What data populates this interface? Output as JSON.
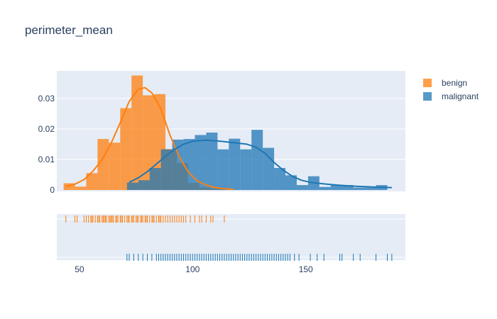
{
  "chart_data": {
    "type": "histogram",
    "title": "perimeter_mean",
    "colors": {
      "benign": "#ff7f0e",
      "malignant": "#1f77b4",
      "plot_bg": "#e5ecf6",
      "text": "#2a3f5f"
    },
    "x_range": [
      40,
      194
    ],
    "y_range": [
      0,
      0.039
    ],
    "x_ticks": [
      50,
      100,
      150
    ],
    "y_ticks": [
      0,
      0.01,
      0.02,
      0.03
    ],
    "y_tick_labels": [
      "0",
      "0.01",
      "0.02",
      "0.03"
    ],
    "legend": {
      "position": "top-right",
      "items": [
        "benign",
        "malignant"
      ]
    },
    "series": [
      {
        "name": "benign",
        "bins": {
          "start": 43,
          "width": 5
        },
        "density": [
          0.0022,
          0.0011,
          0.0055,
          0.0167,
          0.0155,
          0.0268,
          0.0375,
          0.031,
          0.0314,
          0.0134,
          0.0088,
          0.0023,
          0.0008,
          0.0004,
          0.0004
        ],
        "kde": [
          [
            44,
            0.0011
          ],
          [
            48,
            0.0019
          ],
          [
            52,
            0.0034
          ],
          [
            56,
            0.0062
          ],
          [
            60,
            0.0099
          ],
          [
            64,
            0.0153
          ],
          [
            68,
            0.022
          ],
          [
            72,
            0.029
          ],
          [
            76,
            0.033
          ],
          [
            79,
            0.0335
          ],
          [
            82,
            0.0318
          ],
          [
            86,
            0.0265
          ],
          [
            90,
            0.018
          ],
          [
            94,
            0.011
          ],
          [
            98,
            0.006
          ],
          [
            102,
            0.003
          ],
          [
            106,
            0.0016
          ],
          [
            110,
            0.0008
          ],
          [
            114,
            0.0004
          ],
          [
            118,
            0.0002
          ]
        ],
        "rug": [
          44,
          48,
          49,
          52,
          53,
          54,
          55,
          55.5,
          56,
          57,
          58,
          58.5,
          59,
          60,
          60.5,
          61,
          61.5,
          62,
          63,
          63.5,
          64,
          64.5,
          65,
          66,
          66.5,
          67,
          68,
          68.5,
          69,
          70,
          71,
          71.5,
          72,
          73,
          73.5,
          74,
          75,
          75.5,
          76,
          77,
          77.5,
          78,
          79,
          79.5,
          80,
          81,
          82,
          82.5,
          83,
          84,
          85,
          85.5,
          86,
          87,
          88,
          89,
          90,
          91,
          92,
          93,
          94,
          95,
          96,
          97,
          99,
          101,
          103,
          104,
          106,
          108,
          109,
          114
        ]
      },
      {
        "name": "malignant",
        "bins": {
          "start": 71,
          "width": 5
        },
        "density": [
          0.0024,
          0.0032,
          0.0072,
          0.0133,
          0.0165,
          0.0167,
          0.018,
          0.0188,
          0.0133,
          0.0168,
          0.0133,
          0.0197,
          0.0138,
          0.0072,
          0.0048,
          0.0016,
          0.0045,
          0.001,
          0.0016,
          0.0016,
          0.0008,
          0.0008,
          0.0016
        ],
        "kde": [
          [
            72,
            0.0025
          ],
          [
            76,
            0.004
          ],
          [
            80,
            0.006
          ],
          [
            84,
            0.0085
          ],
          [
            88,
            0.011
          ],
          [
            92,
            0.0133
          ],
          [
            96,
            0.015
          ],
          [
            100,
            0.016
          ],
          [
            106,
            0.0163
          ],
          [
            112,
            0.016
          ],
          [
            118,
            0.0155
          ],
          [
            124,
            0.015
          ],
          [
            128,
            0.014
          ],
          [
            132,
            0.012
          ],
          [
            136,
            0.009
          ],
          [
            140,
            0.0065
          ],
          [
            144,
            0.0045
          ],
          [
            148,
            0.0032
          ],
          [
            152,
            0.0025
          ],
          [
            158,
            0.002
          ],
          [
            164,
            0.0016
          ],
          [
            170,
            0.0013
          ],
          [
            176,
            0.0011
          ],
          [
            182,
            0.0009
          ],
          [
            188,
            0.0008
          ]
        ],
        "rug": [
          71,
          72,
          74,
          76,
          78,
          80,
          82,
          84,
          85,
          86,
          87,
          88,
          89,
          90,
          91,
          92,
          93,
          94,
          95,
          96,
          97,
          98,
          99,
          100,
          101,
          102,
          103,
          104,
          105,
          106,
          107,
          108,
          109,
          110,
          111,
          112,
          113,
          114,
          115,
          116,
          117,
          118,
          119,
          120,
          121,
          122,
          123,
          124,
          125,
          126,
          127,
          128,
          129,
          130,
          131,
          132,
          133,
          134,
          135,
          136,
          137,
          138,
          139,
          140,
          141,
          142,
          143,
          145,
          147,
          152,
          155,
          158,
          165,
          166,
          171,
          174,
          181,
          186,
          188
        ]
      }
    ]
  }
}
